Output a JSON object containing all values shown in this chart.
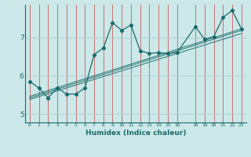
{
  "xlabel": "Humidex (Indice chaleur)",
  "background_color": "#cce8e8",
  "line_color": "#1a6b6b",
  "grid_color_v": "#c87070",
  "grid_color_h": "#b0d0d0",
  "xlim": [
    -0.5,
    23.5
  ],
  "ylim": [
    4.78,
    7.85
  ],
  "yticks": [
    5,
    6,
    7
  ],
  "xticks": [
    0,
    1,
    2,
    3,
    4,
    5,
    6,
    7,
    8,
    9,
    10,
    11,
    12,
    13,
    14,
    15,
    16,
    18,
    19,
    20,
    21,
    22,
    23
  ],
  "series": [
    [
      0,
      5.85
    ],
    [
      1,
      5.68
    ],
    [
      2,
      5.42
    ],
    [
      3,
      5.68
    ],
    [
      4,
      5.52
    ],
    [
      5,
      5.52
    ],
    [
      6,
      5.68
    ],
    [
      7,
      6.55
    ],
    [
      8,
      6.72
    ],
    [
      9,
      7.38
    ],
    [
      10,
      7.18
    ],
    [
      11,
      7.32
    ],
    [
      12,
      6.65
    ],
    [
      13,
      6.58
    ],
    [
      14,
      6.6
    ],
    [
      15,
      6.58
    ],
    [
      16,
      6.6
    ],
    [
      18,
      7.28
    ],
    [
      19,
      6.95
    ],
    [
      20,
      7.02
    ],
    [
      21,
      7.52
    ],
    [
      22,
      7.7
    ],
    [
      23,
      7.22
    ]
  ],
  "regression_lines": [
    {
      "x": [
        0,
        23
      ],
      "y": [
        5.38,
        7.1
      ]
    },
    {
      "x": [
        0,
        23
      ],
      "y": [
        5.42,
        7.18
      ]
    },
    {
      "x": [
        0,
        23
      ],
      "y": [
        5.46,
        7.22
      ]
    }
  ]
}
